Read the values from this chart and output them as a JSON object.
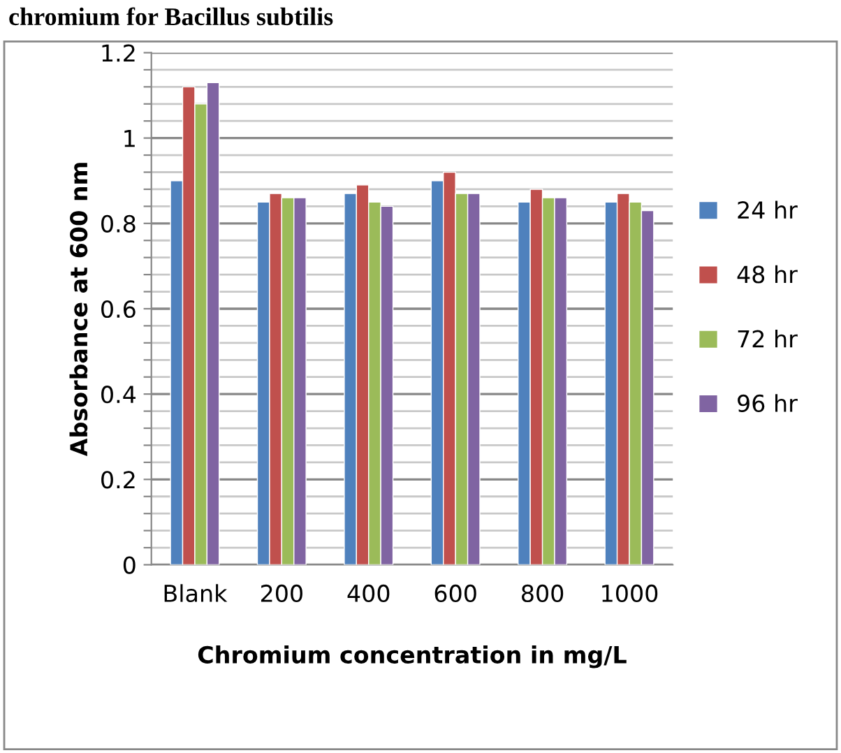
{
  "chart_data": {
    "type": "bar",
    "title": "chromium for Bacillus subtilis",
    "xlabel": "Chromium concentration in mg/L",
    "ylabel": "Absorbance at 600 nm",
    "categories": [
      "Blank",
      "200",
      "400",
      "600",
      "800",
      "1000"
    ],
    "series": [
      {
        "name": "24 hr",
        "color": "#4f81bd",
        "values": [
          0.9,
          0.85,
          0.87,
          0.9,
          0.85,
          0.85
        ]
      },
      {
        "name": "48 hr",
        "color": "#c0504d",
        "values": [
          1.12,
          0.87,
          0.89,
          0.92,
          0.88,
          0.87
        ]
      },
      {
        "name": "72 hr",
        "color": "#9bbb59",
        "values": [
          1.08,
          0.86,
          0.85,
          0.87,
          0.86,
          0.85
        ]
      },
      {
        "name": "96 hr",
        "color": "#8064a2",
        "values": [
          1.13,
          0.86,
          0.84,
          0.87,
          0.86,
          0.83
        ]
      }
    ],
    "ylim": [
      0,
      1.2
    ],
    "yticks": [
      0,
      {
        "value": 0.04,
        "label": null
      },
      {
        "value": 0.08,
        "label": null
      },
      {
        "value": 0.12,
        "label": null
      },
      {
        "value": 0.16,
        "label": null
      },
      0.2,
      {
        "value": 0.24,
        "label": null
      },
      {
        "value": 0.28,
        "label": null
      },
      {
        "value": 0.32,
        "label": null
      },
      {
        "value": 0.36,
        "label": null
      },
      0.4,
      {
        "value": 0.44,
        "label": null
      },
      {
        "value": 0.48,
        "label": null
      },
      {
        "value": 0.52,
        "label": null
      },
      {
        "value": 0.56,
        "label": null
      },
      0.6,
      {
        "value": 0.64,
        "label": null
      },
      {
        "value": 0.68,
        "label": null
      },
      {
        "value": 0.72,
        "label": null
      },
      {
        "value": 0.76,
        "label": null
      },
      0.8,
      {
        "value": 0.84,
        "label": null
      },
      {
        "value": 0.88,
        "label": null
      },
      {
        "value": 0.92,
        "label": null
      },
      {
        "value": 0.96,
        "label": null
      },
      1,
      {
        "value": 1.04,
        "label": null
      },
      {
        "value": 1.08,
        "label": null
      },
      {
        "value": 1.12,
        "label": null
      },
      {
        "value": 1.16,
        "label": null
      },
      1.2
    ],
    "grid": "y",
    "legend": "right"
  }
}
